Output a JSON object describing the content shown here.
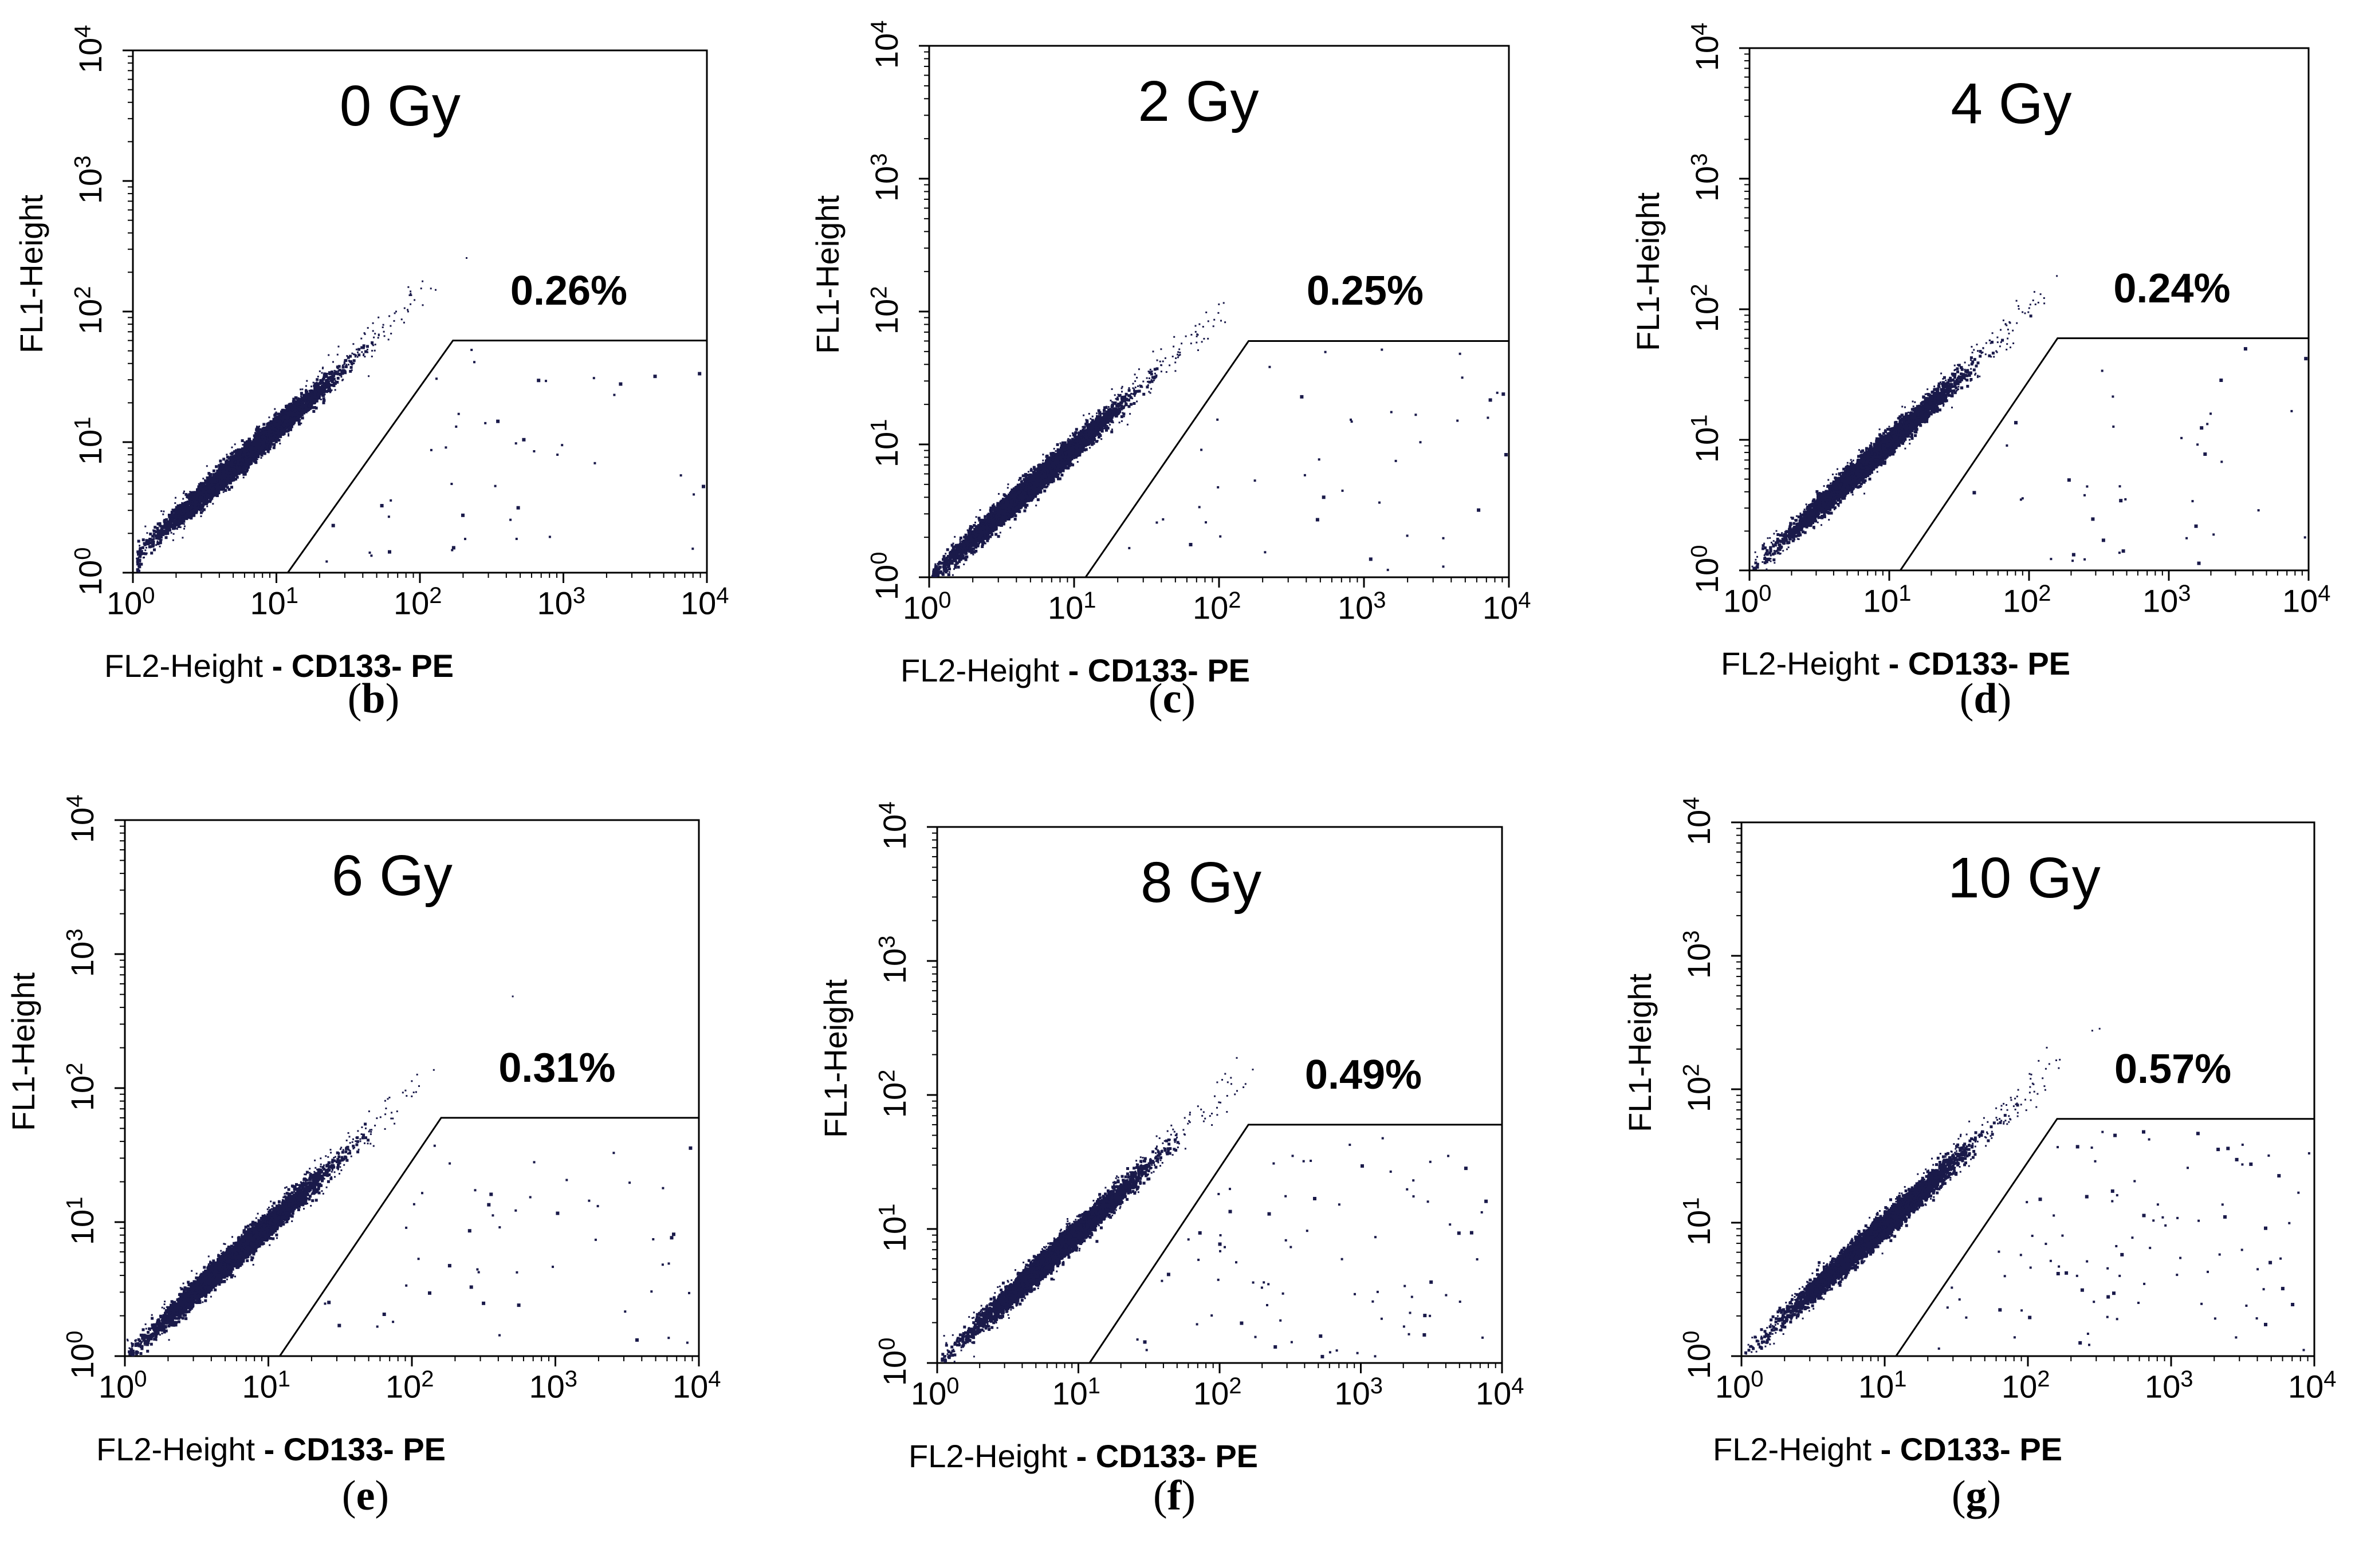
{
  "chart_data": [
    {
      "type": "scatter",
      "panel": "b",
      "title": "0 Gy",
      "gate_percent": "0.26%",
      "xlabel": "FL2-Height",
      "xlabel_marker": "CD133- PE",
      "ylabel": "FL1-Height",
      "xscale": "log",
      "yscale": "log",
      "xlim": [
        1,
        10000
      ],
      "ylim": [
        1,
        10000
      ],
      "x_ticks": [
        "10^0",
        "10^1",
        "10^2",
        "10^3",
        "10^4"
      ],
      "y_ticks": [
        "10^0",
        "10^1",
        "10^2",
        "10^3",
        "10^4"
      ],
      "gate_polygon": [
        [
          12,
          1
        ],
        [
          170,
          60
        ],
        [
          10000,
          60
        ],
        [
          10000,
          1
        ]
      ],
      "gate_event_count": 44,
      "cluster_center": [
        6,
        8
      ]
    },
    {
      "type": "scatter",
      "panel": "c",
      "title": "2 Gy",
      "gate_percent": "0.25%",
      "xlabel": "FL2-Height",
      "xlabel_marker": "CD133- PE",
      "ylabel": "FL1-Height",
      "xscale": "log",
      "yscale": "log",
      "xlim": [
        1,
        10000
      ],
      "ylim": [
        1,
        10000
      ],
      "x_ticks": [
        "10^0",
        "10^1",
        "10^2",
        "10^3",
        "10^4"
      ],
      "y_ticks": [
        "10^0",
        "10^1",
        "10^2",
        "10^3",
        "10^4"
      ],
      "gate_polygon": [
        [
          12,
          1
        ],
        [
          160,
          60
        ],
        [
          10000,
          60
        ],
        [
          10000,
          1
        ]
      ],
      "gate_event_count": 42,
      "cluster_center": [
        5,
        5
      ]
    },
    {
      "type": "scatter",
      "panel": "d",
      "title": "4 Gy",
      "gate_percent": "0.24%",
      "xlabel": "FL2-Height",
      "xlabel_marker": "CD133- PE",
      "ylabel": "FL1-Height",
      "xscale": "log",
      "yscale": "log",
      "xlim": [
        1,
        10000
      ],
      "ylim": [
        1,
        10000
      ],
      "x_ticks": [
        "10^0",
        "10^1",
        "10^2",
        "10^3",
        "10^4"
      ],
      "y_ticks": [
        "10^0",
        "10^1",
        "10^2",
        "10^3",
        "10^4"
      ],
      "gate_polygon": [
        [
          12,
          1
        ],
        [
          160,
          60
        ],
        [
          10000,
          60
        ],
        [
          10000,
          1
        ]
      ],
      "gate_event_count": 40,
      "cluster_center": [
        7,
        7
      ]
    },
    {
      "type": "scatter",
      "panel": "e",
      "title": "6 Gy",
      "gate_percent": "0.31%",
      "xlabel": "FL2-Height",
      "xlabel_marker": "CD133- PE",
      "ylabel": "FL1-Height",
      "xscale": "log",
      "yscale": "log",
      "xlim": [
        1,
        10000
      ],
      "ylim": [
        1,
        10000
      ],
      "x_ticks": [
        "10^0",
        "10^1",
        "10^2",
        "10^3",
        "10^4"
      ],
      "y_ticks": [
        "10^0",
        "10^1",
        "10^2",
        "10^3",
        "10^4"
      ],
      "gate_polygon": [
        [
          12,
          1
        ],
        [
          160,
          60
        ],
        [
          10000,
          60
        ],
        [
          10000,
          1
        ]
      ],
      "gate_event_count": 52,
      "cluster_center": [
        6,
        6
      ]
    },
    {
      "type": "scatter",
      "panel": "f",
      "title": "8 Gy",
      "gate_percent": "0.49%",
      "xlabel": "FL2-Height",
      "xlabel_marker": "CD133- PE",
      "ylabel": "FL1-Height",
      "xscale": "log",
      "yscale": "log",
      "xlim": [
        1,
        10000
      ],
      "ylim": [
        1,
        10000
      ],
      "x_ticks": [
        "10^0",
        "10^1",
        "10^2",
        "10^3",
        "10^4"
      ],
      "y_ticks": [
        "10^0",
        "10^1",
        "10^2",
        "10^3",
        "10^4"
      ],
      "gate_polygon": [
        [
          12,
          1
        ],
        [
          160,
          60
        ],
        [
          10000,
          60
        ],
        [
          10000,
          1
        ]
      ],
      "gate_event_count": 82,
      "cluster_center": [
        7,
        7
      ]
    },
    {
      "type": "scatter",
      "panel": "g",
      "title": "10 Gy",
      "gate_percent": "0.57%",
      "xlabel": "FL2-Height",
      "xlabel_marker": "CD133- PE",
      "ylabel": "FL1-Height",
      "xscale": "log",
      "yscale": "log",
      "xlim": [
        1,
        10000
      ],
      "ylim": [
        1,
        10000
      ],
      "x_ticks": [
        "10^0",
        "10^1",
        "10^2",
        "10^3",
        "10^4"
      ],
      "y_ticks": [
        "10^0",
        "10^1",
        "10^2",
        "10^3",
        "10^4"
      ],
      "gate_polygon": [
        [
          12,
          1
        ],
        [
          160,
          60
        ],
        [
          10000,
          60
        ],
        [
          10000,
          1
        ]
      ],
      "gate_event_count": 96,
      "cluster_center": [
        8,
        8
      ]
    }
  ],
  "captions": [
    "(b)",
    "(c)",
    "(d)",
    "(e)",
    "(f)",
    "(g)"
  ],
  "colors": {
    "events": "#1a1a4a",
    "axis": "#000000"
  }
}
